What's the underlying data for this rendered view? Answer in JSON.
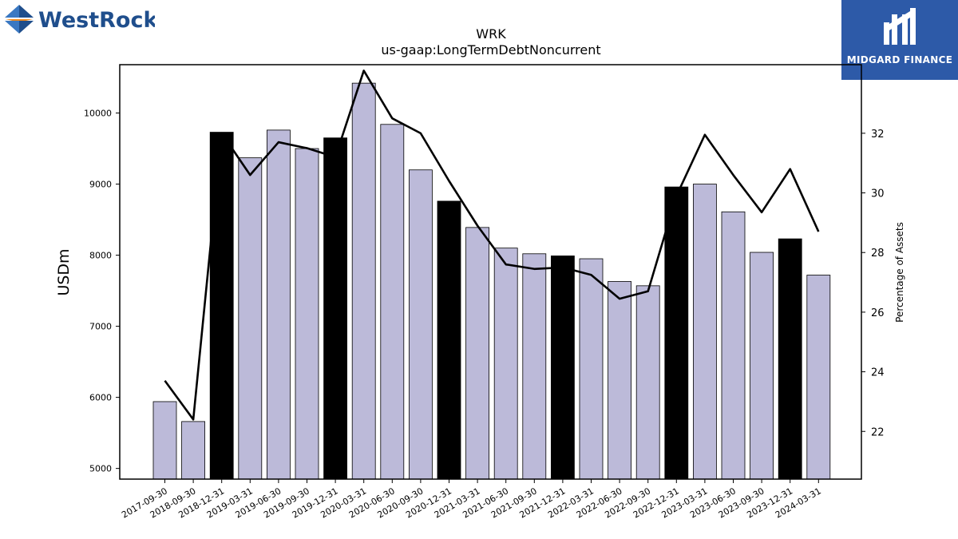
{
  "branding": {
    "left_logo_text": "WestRock",
    "right_logo_text": "MIDGARD FINANCE",
    "colors": {
      "westrock_blue": "#1f4e8c",
      "westrock_orange": "#f08a1c",
      "midgard_blue": "#2d5aa8"
    }
  },
  "chart_data": {
    "type": "bar",
    "title": "WRK",
    "subtitle": "us-gaap:LongTermDebtNoncurrent",
    "ylabel": "USDm",
    "y2label": "Percentage of Assets",
    "ylim": [
      4850,
      10680
    ],
    "y2lim": [
      20.4,
      34.3
    ],
    "yticks": [
      5000,
      6000,
      7000,
      8000,
      9000,
      10000
    ],
    "y2ticks": [
      22,
      24,
      26,
      28,
      30,
      32
    ],
    "categories": [
      "2017-09-30",
      "2018-09-30",
      "2018-12-31",
      "2019-03-31",
      "2019-06-30",
      "2019-09-30",
      "2019-12-31",
      "2020-03-31",
      "2020-06-30",
      "2020-09-30",
      "2020-12-31",
      "2021-03-31",
      "2021-06-30",
      "2021-09-30",
      "2021-12-31",
      "2022-03-31",
      "2022-06-30",
      "2022-09-30",
      "2022-12-31",
      "2023-03-31",
      "2023-06-30",
      "2023-09-30",
      "2023-12-31",
      "2024-03-31"
    ],
    "series": [
      {
        "name": "",
        "axis": "left",
        "kind": "bar",
        "values": [
          5940,
          5660,
          9730,
          9370,
          9760,
          9500,
          9650,
          10420,
          9840,
          9200,
          8760,
          8390,
          8100,
          8020,
          7990,
          7950,
          7630,
          7570,
          8960,
          9000,
          8610,
          8040,
          8230,
          7720
        ],
        "highlight": [
          false,
          false,
          true,
          false,
          false,
          false,
          true,
          false,
          false,
          false,
          true,
          false,
          false,
          false,
          true,
          false,
          false,
          false,
          true,
          false,
          false,
          false,
          true,
          false
        ]
      },
      {
        "name": "",
        "axis": "right",
        "kind": "line",
        "values": [
          23.7,
          22.4,
          32.0,
          30.6,
          31.7,
          31.5,
          31.2,
          34.1,
          32.5,
          32.0,
          30.4,
          28.9,
          27.6,
          27.45,
          27.5,
          27.25,
          26.45,
          26.7,
          29.9,
          31.95,
          30.6,
          29.35,
          30.8,
          28.7
        ]
      }
    ],
    "colors": {
      "bar": "#bcbad9",
      "highlight_bar": "#000000",
      "line": "#000000"
    },
    "grid": false,
    "legend": "none"
  }
}
